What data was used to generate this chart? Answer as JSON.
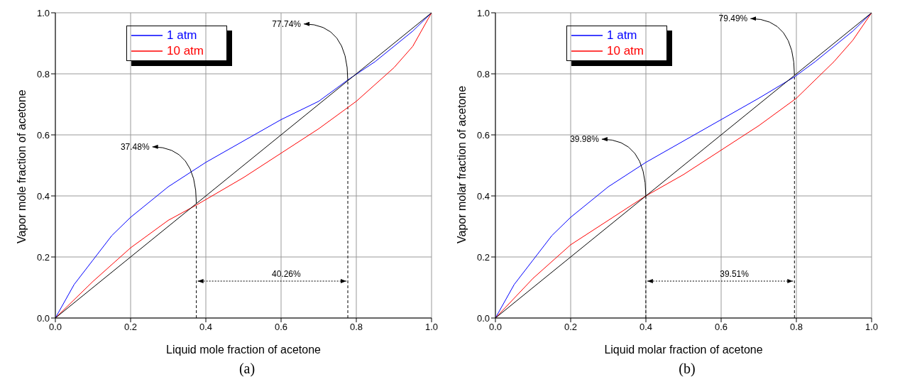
{
  "chart_data": [
    {
      "type": "line",
      "xlabel": "Liquid mole fraction of acetone",
      "ylabel": "Vapor mole fraction of acetone",
      "xlim": [
        0,
        1
      ],
      "ylim": [
        0,
        1
      ],
      "xticks": [
        {
          "value": 0,
          "label": "0.0"
        },
        {
          "value": 0.2,
          "label": "0.2"
        },
        {
          "value": 0.4,
          "label": "0.4"
        },
        {
          "value": 0.6,
          "label": "0.6"
        },
        {
          "value": 0.8,
          "label": "0.8"
        },
        {
          "value": 1,
          "label": "1.0"
        }
      ],
      "yticks": [
        {
          "value": 0,
          "label": "0.0"
        },
        {
          "value": 0.2,
          "label": "0.2"
        },
        {
          "value": 0.4,
          "label": "0.4"
        },
        {
          "value": 0.6,
          "label": "0.6"
        },
        {
          "value": 0.8,
          "label": "0.8"
        },
        {
          "value": 1,
          "label": "1.0"
        }
      ],
      "grid": true,
      "legend": "top left",
      "marker": "none",
      "line_style": "solid",
      "series": [
        {
          "name": "1 atm",
          "color": "#0000ff",
          "x": [
            0,
            0.05,
            0.1,
            0.15,
            0.2,
            0.3,
            0.4,
            0.5,
            0.6,
            0.7,
            0.7774,
            0.85,
            0.9,
            0.95,
            1
          ],
          "values": [
            0,
            0.11,
            0.19,
            0.27,
            0.33,
            0.43,
            0.51,
            0.58,
            0.65,
            0.71,
            0.78,
            0.84,
            0.89,
            0.94,
            1
          ]
        },
        {
          "name": "10 atm",
          "color": "#ff0000",
          "x": [
            0,
            0.1,
            0.2,
            0.3,
            0.3748,
            0.5,
            0.6,
            0.7,
            0.8,
            0.9,
            0.95,
            1
          ],
          "values": [
            0,
            0.12,
            0.23,
            0.32,
            0.37,
            0.46,
            0.54,
            0.62,
            0.71,
            0.82,
            0.89,
            1
          ]
        },
        {
          "color": "#000000",
          "x": [
            0,
            1
          ],
          "values": [
            0,
            1
          ]
        }
      ],
      "ref_lines": [
        {
          "axis": "x",
          "value": 0.3748,
          "line_style": "dashed",
          "color": "#000000"
        },
        {
          "axis": "x",
          "value": 0.7774,
          "line_style": "dashed",
          "color": "#000000"
        }
      ],
      "annotations": [
        {
          "text": "37.48%",
          "x": 0.3748,
          "y": 0.3748
        },
        {
          "text": "77.74%",
          "x": 0.7774,
          "y": 0.7774
        },
        "40.26%",
        "(a)"
      ]
    },
    {
      "type": "line",
      "xlabel": "Liquid molar fraction of acetone",
      "ylabel": "Vapor molar fraction of acetone",
      "xlim": [
        0,
        1
      ],
      "ylim": [
        0,
        1
      ],
      "xticks": [
        {
          "value": 0,
          "label": "0.0"
        },
        {
          "value": 0.2,
          "label": "0.2"
        },
        {
          "value": 0.4,
          "label": "0.4"
        },
        {
          "value": 0.6,
          "label": "0.6"
        },
        {
          "value": 0.8,
          "label": "0.8"
        },
        {
          "value": 1,
          "label": "1.0"
        }
      ],
      "yticks": [
        {
          "value": 0,
          "label": "0.0"
        },
        {
          "value": 0.2,
          "label": "0.2"
        },
        {
          "value": 0.4,
          "label": "0.4"
        },
        {
          "value": 0.6,
          "label": "0.6"
        },
        {
          "value": 0.8,
          "label": "0.8"
        },
        {
          "value": 1,
          "label": "1.0"
        }
      ],
      "grid": true,
      "legend": "top left",
      "marker": "none",
      "line_style": "solid",
      "series": [
        {
          "name": "1 atm",
          "color": "#0000ff",
          "x": [
            0,
            0.05,
            0.1,
            0.15,
            0.2,
            0.3,
            0.4,
            0.5,
            0.6,
            0.7,
            0.7949,
            0.85,
            0.9,
            0.95,
            1
          ],
          "values": [
            0,
            0.11,
            0.19,
            0.27,
            0.33,
            0.43,
            0.51,
            0.58,
            0.65,
            0.72,
            0.79,
            0.84,
            0.89,
            0.94,
            1
          ]
        },
        {
          "name": "10 atm",
          "color": "#ff0000",
          "x": [
            0,
            0.1,
            0.2,
            0.3,
            0.3998,
            0.5,
            0.6,
            0.7,
            0.8,
            0.9,
            0.95,
            1
          ],
          "values": [
            0,
            0.13,
            0.24,
            0.32,
            0.4,
            0.47,
            0.55,
            0.63,
            0.72,
            0.84,
            0.91,
            1
          ]
        },
        {
          "color": "#000000",
          "x": [
            0,
            1
          ],
          "values": [
            0,
            1
          ]
        }
      ],
      "ref_lines": [
        {
          "axis": "x",
          "value": 0.3998,
          "line_style": "dashed",
          "color": "#000000"
        },
        {
          "axis": "x",
          "value": 0.7949,
          "line_style": "dashed",
          "color": "#000000"
        }
      ],
      "annotations": [
        {
          "text": "39.98%",
          "x": 0.3998,
          "y": 0.3998
        },
        {
          "text": "79.49%",
          "x": 0.7949,
          "y": 0.7949
        },
        "39.51%",
        "(b)"
      ]
    }
  ]
}
